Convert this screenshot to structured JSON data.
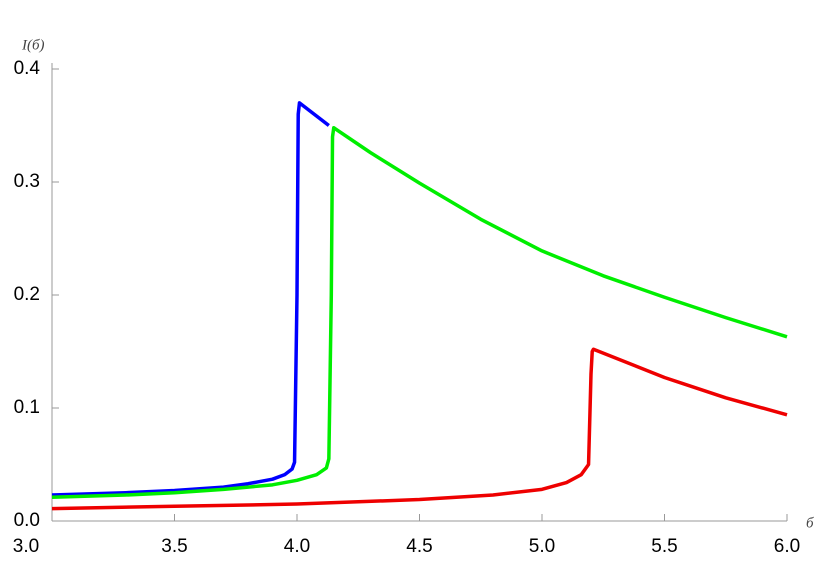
{
  "chart_data": {
    "type": "line",
    "x_label": "б",
    "y_label": "I(б)",
    "xlim": [
      3,
      6
    ],
    "ylim": [
      0,
      0.4
    ],
    "xticks": [
      {
        "value": 3,
        "label": "3.0"
      },
      3.5,
      {
        "value": 4,
        "label": "4.0"
      },
      4.5,
      {
        "value": 5,
        "label": "5.0"
      },
      5.5,
      {
        "value": 6,
        "label": "6.0"
      }
    ],
    "yticks": [
      {
        "value": 0,
        "label": "0.0"
      },
      0.1,
      0.2,
      0.3,
      0.4
    ],
    "series": [
      {
        "color": "#0000ff",
        "x": [
          3.0,
          3.3,
          3.5,
          3.7,
          3.8,
          3.9,
          3.95,
          3.98,
          3.99,
          4.0,
          4.005,
          4.01,
          4.13
        ],
        "values": [
          0.023,
          0.025,
          0.027,
          0.03,
          0.033,
          0.037,
          0.041,
          0.046,
          0.052,
          0.2,
          0.36,
          0.37,
          0.35
        ]
      },
      {
        "color": "#00ee00",
        "x": [
          3.0,
          3.3,
          3.5,
          3.7,
          3.9,
          4.0,
          4.08,
          4.12,
          4.13,
          4.14,
          4.145,
          4.15,
          4.3,
          4.5,
          4.75,
          5.0,
          5.25,
          5.5,
          5.75,
          6.0
        ],
        "values": [
          0.021,
          0.023,
          0.025,
          0.028,
          0.032,
          0.036,
          0.041,
          0.047,
          0.055,
          0.2,
          0.34,
          0.348,
          0.326,
          0.299,
          0.267,
          0.239,
          0.217,
          0.198,
          0.18,
          0.163
        ]
      },
      {
        "color": "#ee0000",
        "x": [
          3.0,
          3.5,
          4.0,
          4.5,
          4.8,
          5.0,
          5.1,
          5.16,
          5.19,
          5.2,
          5.205,
          5.21,
          5.5,
          5.75,
          6.0
        ],
        "values": [
          0.011,
          0.013,
          0.015,
          0.019,
          0.023,
          0.028,
          0.034,
          0.041,
          0.05,
          0.13,
          0.15,
          0.152,
          0.127,
          0.109,
          0.094
        ]
      }
    ]
  }
}
